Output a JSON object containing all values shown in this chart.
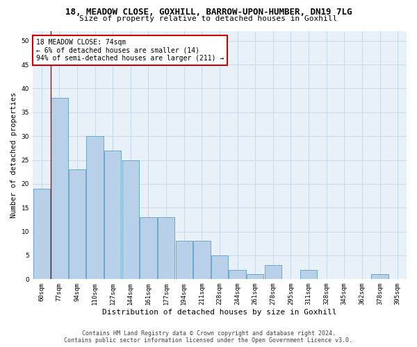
{
  "title": "18, MEADOW CLOSE, GOXHILL, BARROW-UPON-HUMBER, DN19 7LG",
  "subtitle": "Size of property relative to detached houses in Goxhill",
  "xlabel": "Distribution of detached houses by size in Goxhill",
  "ylabel": "Number of detached properties",
  "categories": [
    "60sqm",
    "77sqm",
    "94sqm",
    "110sqm",
    "127sqm",
    "144sqm",
    "161sqm",
    "177sqm",
    "194sqm",
    "211sqm",
    "228sqm",
    "244sqm",
    "261sqm",
    "278sqm",
    "295sqm",
    "311sqm",
    "328sqm",
    "345sqm",
    "362sqm",
    "378sqm",
    "395sqm"
  ],
  "values": [
    19,
    38,
    23,
    30,
    27,
    25,
    13,
    13,
    8,
    8,
    5,
    2,
    1,
    3,
    0,
    2,
    0,
    0,
    0,
    1,
    0
  ],
  "bar_color": "#b8d0e8",
  "bar_edge_color": "#5a9fc8",
  "annotation_text": "18 MEADOW CLOSE: 74sqm\n← 6% of detached houses are smaller (14)\n94% of semi-detached houses are larger (211) →",
  "annotation_box_color": "#ffffff",
  "annotation_box_edge_color": "#cc0000",
  "vline_color": "#cc0000",
  "vline_x": 0.5,
  "ylim": [
    0,
    52
  ],
  "yticks": [
    0,
    5,
    10,
    15,
    20,
    25,
    30,
    35,
    40,
    45,
    50
  ],
  "grid_color": "#c5d8ea",
  "bg_color": "#e8f0f8",
  "footer_line1": "Contains HM Land Registry data © Crown copyright and database right 2024.",
  "footer_line2": "Contains public sector information licensed under the Open Government Licence v3.0.",
  "title_fontsize": 9,
  "subtitle_fontsize": 8,
  "xlabel_fontsize": 8,
  "ylabel_fontsize": 7.5,
  "tick_fontsize": 6.5,
  "annotation_fontsize": 7,
  "footer_fontsize": 6
}
